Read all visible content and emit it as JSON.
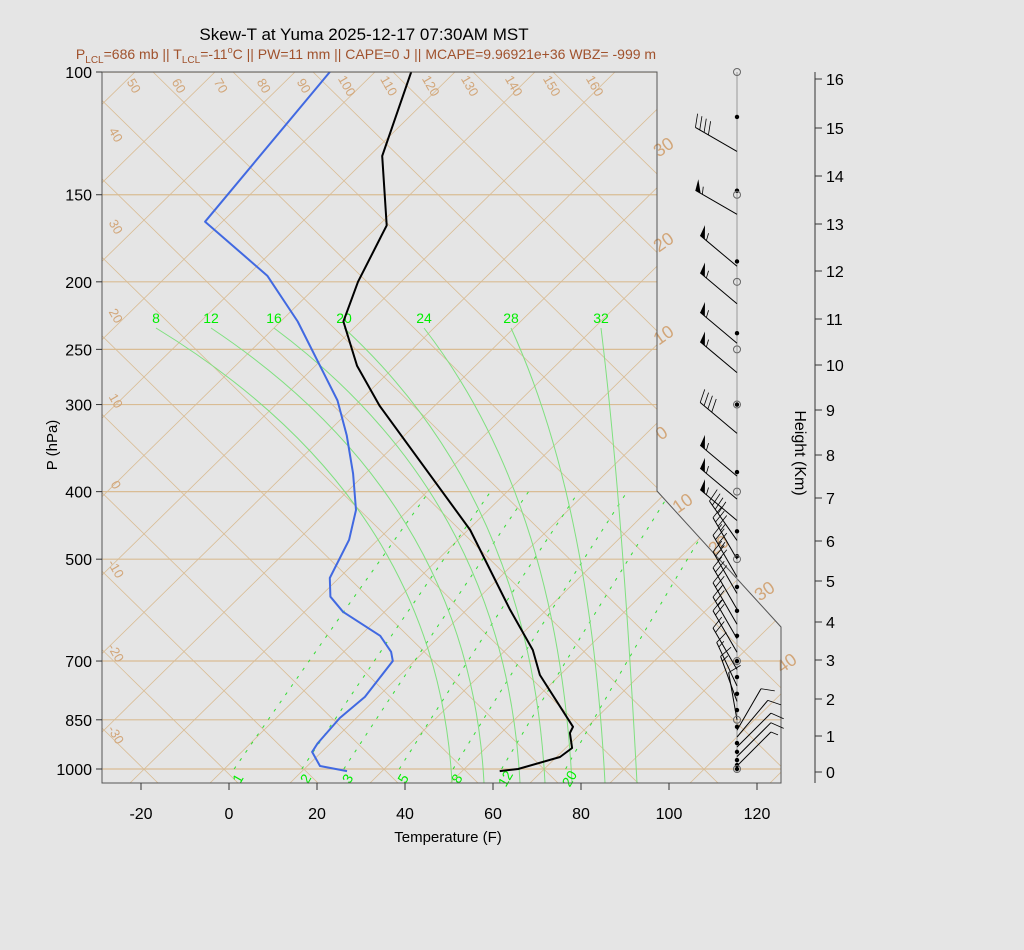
{
  "title": "Skew-T at Yuma 2025-12-17 07:30AM MST",
  "subtitle": {
    "p_sym": "P",
    "lcl1": "LCL",
    "p_text": "=686 mb || T",
    "lcl2": "LCL",
    "t_text": "=-11",
    "deg": "o",
    "rest": "C || PW=11 mm || CAPE=0 J || MCAPE=9.96921e+36 WBZ= -999 m",
    "color": "#a0522d"
  },
  "chart_data": {
    "type": "line",
    "subtype": "skew-t log-p",
    "xlabel": "Temperature (F)",
    "ylabel": "P (hPa)",
    "y2label": "Height (Km)",
    "x_ticks": [
      "-20",
      "0",
      "20",
      "40",
      "60",
      "80",
      "100",
      "120"
    ],
    "y_ticks": [
      "100",
      "150",
      "200",
      "250",
      "300",
      "400",
      "500",
      "700",
      "850",
      "1000"
    ],
    "y2_ticks": [
      "0",
      "1",
      "2",
      "3",
      "4",
      "5",
      "6",
      "7",
      "8",
      "9",
      "10",
      "11",
      "12",
      "13",
      "14",
      "15",
      "16"
    ],
    "ylim": [
      1000,
      100
    ],
    "y_scale": "log",
    "colors": {
      "temperature": "#000000",
      "dewpoint": "#4169e1",
      "grid": "#d9bc94",
      "moist": "#7fe07f",
      "mixing": "#33dd33"
    },
    "temperature": {
      "p": [
        1007,
        1000,
        961,
        933,
        888,
        870,
        733,
        675,
        591,
        454,
        301,
        264,
        228,
        200,
        166,
        132,
        100
      ],
      "t": [
        62.0,
        65.7,
        72.5,
        73.2,
        69.3,
        68.6,
        49.3,
        42.0,
        27.7,
        0.5,
        -48.4,
        -62.5,
        -75.7,
        -81.4,
        -87.7,
        -104.5,
        -117.0
      ]
    },
    "dewpoint": {
      "p": [
        1007,
        990,
        945,
        918,
        845,
        788,
        700,
        679,
        644,
        595,
        566,
        532,
        469,
        425,
        377,
        332,
        296,
        228,
        196,
        164,
        100
      ],
      "t": [
        27.3,
        20.0,
        15.0,
        14.3,
        13.6,
        14.5,
        12.7,
        10.2,
        4.1,
        -9.8,
        -16.1,
        -20.5,
        -24.8,
        -30.0,
        -38.9,
        -49.1,
        -59.1,
        -86.1,
        -103.4,
        -129.8,
        -135.5
      ]
    },
    "dry_adiabat_labels_top": [
      "50",
      "60",
      "70",
      "80",
      "90",
      "100",
      "110",
      "120",
      "130",
      "140",
      "150",
      "160"
    ],
    "dry_adiabat_labels_left": [
      "40",
      "30",
      "20",
      "10",
      "0",
      "-10",
      "-20",
      "-30"
    ],
    "isotherm_labels_right": [
      "30",
      "20",
      "10",
      "0",
      "10",
      "20",
      "30",
      "40"
    ],
    "moist_adiabat_labels": [
      "8",
      "12",
      "16",
      "20",
      "24",
      "28",
      "32"
    ],
    "mixing_ratio_labels": [
      "1",
      "2",
      "3",
      "5",
      "8",
      "12",
      "20"
    ],
    "wind_levels_p": [
      116,
      148,
      187,
      237,
      300,
      375,
      456,
      495,
      548,
      593,
      644,
      700,
      738,
      780,
      823,
      870,
      918,
      945,
      971,
      987,
      1000
    ],
    "mandatory_levels_p": [
      100,
      150,
      200,
      250,
      300,
      400,
      500,
      700,
      850,
      1000
    ],
    "winds": [
      {
        "p": 130,
        "dir": 300,
        "spd": 40
      },
      {
        "p": 160,
        "dir": 300,
        "spd": 55
      },
      {
        "p": 190,
        "dir": 310,
        "spd": 55
      },
      {
        "p": 215,
        "dir": 310,
        "spd": 55
      },
      {
        "p": 245,
        "dir": 310,
        "spd": 55
      },
      {
        "p": 270,
        "dir": 310,
        "spd": 55
      },
      {
        "p": 330,
        "dir": 310,
        "spd": 40
      },
      {
        "p": 380,
        "dir": 310,
        "spd": 55
      },
      {
        "p": 410,
        "dir": 310,
        "spd": 55
      },
      {
        "p": 440,
        "dir": 310,
        "spd": 55
      },
      {
        "p": 470,
        "dir": 325,
        "spd": 40
      },
      {
        "p": 500,
        "dir": 330,
        "spd": 35
      },
      {
        "p": 530,
        "dir": 330,
        "spd": 35
      },
      {
        "p": 560,
        "dir": 330,
        "spd": 30
      },
      {
        "p": 590,
        "dir": 330,
        "spd": 30
      },
      {
        "p": 620,
        "dir": 330,
        "spd": 25
      },
      {
        "p": 650,
        "dir": 330,
        "spd": 25
      },
      {
        "p": 680,
        "dir": 330,
        "spd": 20
      },
      {
        "p": 720,
        "dir": 330,
        "spd": 20
      },
      {
        "p": 760,
        "dir": 335,
        "spd": 15
      },
      {
        "p": 800,
        "dir": 340,
        "spd": 15
      },
      {
        "p": 850,
        "dir": 350,
        "spd": 10
      },
      {
        "p": 880,
        "dir": 30,
        "spd": 10
      },
      {
        "p": 900,
        "dir": 40,
        "spd": 10
      },
      {
        "p": 930,
        "dir": 45,
        "spd": 10
      },
      {
        "p": 960,
        "dir": 45,
        "spd": 10
      },
      {
        "p": 990,
        "dir": 45,
        "spd": 5
      }
    ]
  }
}
